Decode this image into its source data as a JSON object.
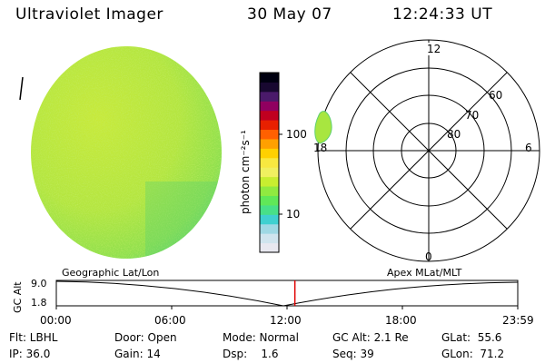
{
  "header": {
    "instrument": "Ultraviolet Imager",
    "date": "30 May 07",
    "time": "12:24:33 UT"
  },
  "colorbar": {
    "unit_label": "photon cm⁻²s⁻¹",
    "ticks": [
      "100",
      "10"
    ],
    "colors": [
      "#e8e8f0",
      "#d0e4ee",
      "#9fd8e4",
      "#40d0d0",
      "#48e088",
      "#60e858",
      "#90ea40",
      "#c8ee30",
      "#f0f060",
      "#f8e840",
      "#ffd000",
      "#ffa000",
      "#ff6000",
      "#e82000",
      "#c00020",
      "#900060",
      "#4a1a6a",
      "#180830",
      "#000010"
    ]
  },
  "polar": {
    "labels": {
      "top": "12",
      "right": "6",
      "bottom": "0",
      "left": "18"
    },
    "ring_labels": [
      "60",
      "70",
      "80"
    ]
  },
  "orbit": {
    "label_left": "Geographic Lat/Lon",
    "label_right": "Apex MLat/MLT",
    "ylabel": "GC Alt",
    "y_ticks": [
      "9.0",
      "1.8"
    ],
    "x_ticks": [
      "00:00",
      "06:00",
      "12:00",
      "18:00",
      "23:59"
    ],
    "current_time_fraction": 0.517
  },
  "status": {
    "rows": [
      [
        "Flt: LBHL",
        "Door: Open",
        "Mode: Normal",
        "GC Alt: 2.1 Re",
        "GLat:  55.6"
      ],
      [
        "IP: 36.0",
        "Gain: 14",
        "Dsp:    1.6",
        "Seq: 39",
        "GLon:  71.2"
      ]
    ]
  }
}
